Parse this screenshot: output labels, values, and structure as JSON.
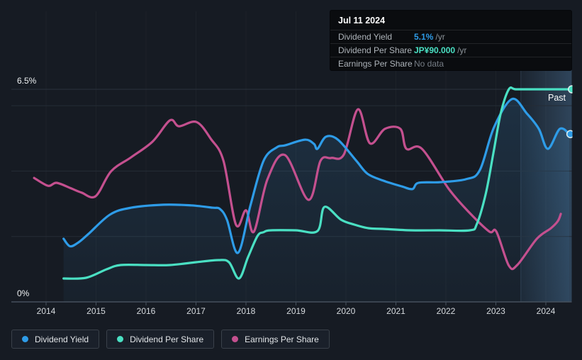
{
  "tooltip": {
    "date": "Jul 11 2024",
    "rows": [
      {
        "label": "Dividend Yield",
        "value": "5.1%",
        "suffix": "/yr",
        "value_color": "#2e9ce8",
        "muted": false
      },
      {
        "label": "Dividend Per Share",
        "value": "JP¥90.000",
        "suffix": "/yr",
        "value_color": "#4ae0c3",
        "muted": false
      },
      {
        "label": "Earnings Per Share",
        "value": "No data",
        "suffix": "",
        "value_color": "#757c84",
        "muted": true
      }
    ]
  },
  "past_label": "Past",
  "y_axis_labels": {
    "top": "6.5%",
    "bottom": "0%"
  },
  "x_axis_years": [
    "2014",
    "2015",
    "2016",
    "2017",
    "2018",
    "2019",
    "2020",
    "2021",
    "2022",
    "2023",
    "2024"
  ],
  "legend": [
    {
      "label": "Dividend Yield",
      "color": "#2e9ce8"
    },
    {
      "label": "Dividend Per Share",
      "color": "#4ae0c3"
    },
    {
      "label": "Earnings Per Share",
      "color": "#c4508f"
    }
  ],
  "colors": {
    "background": "#161b23",
    "gridline": "#252c36",
    "gridline_top": "#2a313c",
    "axis": "#45505c",
    "blue": "#2e9ce8",
    "teal": "#4ae0c3",
    "pink": "#c4508f",
    "area_fill": "rgba(64,150,215,",
    "past_band": "rgba(118,188,250,"
  },
  "chart_data": {
    "type": "line",
    "title": "Dividend history (past) — hover date Jul 11 2024",
    "x_axis": {
      "label": "year",
      "tick_years": [
        2014,
        2015,
        2016,
        2017,
        2018,
        2019,
        2020,
        2021,
        2022,
        2023,
        2024
      ],
      "range": [
        2013.7,
        2024.55
      ]
    },
    "y_axis": {
      "unit": "% (dividend yield scale)",
      "min": 0,
      "max": 6.5,
      "labeled_ticks": [
        "0%",
        "6.5%"
      ],
      "gridline_pcts": [
        2,
        4,
        6,
        6.5
      ],
      "grid": true
    },
    "past_band_start_year": 2023.5,
    "legend_position": "bottom-left",
    "series": [
      {
        "name": "Dividend Yield",
        "unit": "%",
        "color": "#2e9ce8",
        "area_fill": true,
        "end_marker": true,
        "to_pct": 1,
        "points": [
          [
            2014.35,
            1.93
          ],
          [
            2014.48,
            1.7
          ],
          [
            2014.65,
            1.82
          ],
          [
            2014.85,
            2.08
          ],
          [
            2015.28,
            2.67
          ],
          [
            2015.7,
            2.88
          ],
          [
            2016.35,
            2.97
          ],
          [
            2016.9,
            2.95
          ],
          [
            2017.33,
            2.88
          ],
          [
            2017.48,
            2.84
          ],
          [
            2017.62,
            2.51
          ],
          [
            2017.84,
            1.5
          ],
          [
            2018.09,
            2.95
          ],
          [
            2018.35,
            4.31
          ],
          [
            2018.61,
            4.72
          ],
          [
            2018.79,
            4.79
          ],
          [
            2019.18,
            4.96
          ],
          [
            2019.36,
            4.83
          ],
          [
            2019.43,
            4.68
          ],
          [
            2019.6,
            5.05
          ],
          [
            2019.84,
            4.96
          ],
          [
            2020.21,
            4.31
          ],
          [
            2020.43,
            3.92
          ],
          [
            2020.74,
            3.71
          ],
          [
            2021.12,
            3.53
          ],
          [
            2021.33,
            3.45
          ],
          [
            2021.45,
            3.64
          ],
          [
            2021.87,
            3.66
          ],
          [
            2022.4,
            3.75
          ],
          [
            2022.68,
            4.03
          ],
          [
            2022.96,
            5.33
          ],
          [
            2023.32,
            6.2
          ],
          [
            2023.62,
            5.76
          ],
          [
            2023.86,
            5.29
          ],
          [
            2024.04,
            4.68
          ],
          [
            2024.28,
            5.29
          ],
          [
            2024.47,
            5.13
          ]
        ]
      },
      {
        "name": "Dividend Per Share",
        "unit": "JP¥/yr",
        "color": "#4ae0c3",
        "area_fill": false,
        "end_marker": true,
        "to_pct": 0.072222,
        "points": [
          [
            2014.35,
            9.9
          ],
          [
            2014.8,
            10.2
          ],
          [
            2015.21,
            13.8
          ],
          [
            2015.49,
            15.6
          ],
          [
            2016.0,
            15.6
          ],
          [
            2016.48,
            15.6
          ],
          [
            2017.0,
            16.8
          ],
          [
            2017.45,
            17.7
          ],
          [
            2017.66,
            16.8
          ],
          [
            2017.86,
            9.9
          ],
          [
            2018.04,
            18.9
          ],
          [
            2018.23,
            27.9
          ],
          [
            2018.35,
            29.5
          ],
          [
            2018.5,
            30.3
          ],
          [
            2019.0,
            30.3
          ],
          [
            2019.43,
            30.0
          ],
          [
            2019.57,
            40.2
          ],
          [
            2019.9,
            34.8
          ],
          [
            2020.17,
            32.7
          ],
          [
            2020.45,
            31.2
          ],
          [
            2020.74,
            30.9
          ],
          [
            2021.3,
            30.3
          ],
          [
            2021.87,
            30.3
          ],
          [
            2022.48,
            30.3
          ],
          [
            2022.62,
            33.0
          ],
          [
            2022.8,
            46.0
          ],
          [
            2022.95,
            63.0
          ],
          [
            2023.1,
            80.0
          ],
          [
            2023.26,
            90.0
          ],
          [
            2023.4,
            90.0
          ],
          [
            2023.8,
            90.0
          ],
          [
            2024.5,
            90.0
          ]
        ]
      },
      {
        "name": "Earnings Per Share",
        "unit": "plotted on yield axis (currency scale not shown; no data at hover date)",
        "color": "#c4508f",
        "area_fill": false,
        "end_marker": false,
        "to_pct": 1,
        "points": [
          [
            2013.76,
            3.79
          ],
          [
            2014.04,
            3.55
          ],
          [
            2014.21,
            3.64
          ],
          [
            2014.5,
            3.47
          ],
          [
            2014.71,
            3.34
          ],
          [
            2014.99,
            3.23
          ],
          [
            2015.3,
            3.99
          ],
          [
            2015.7,
            4.42
          ],
          [
            2016.13,
            4.9
          ],
          [
            2016.48,
            5.55
          ],
          [
            2016.66,
            5.37
          ],
          [
            2017.01,
            5.5
          ],
          [
            2017.3,
            4.98
          ],
          [
            2017.55,
            4.31
          ],
          [
            2017.8,
            2.36
          ],
          [
            2018.0,
            2.8
          ],
          [
            2018.16,
            2.15
          ],
          [
            2018.43,
            3.75
          ],
          [
            2018.78,
            4.49
          ],
          [
            2019.25,
            3.12
          ],
          [
            2019.49,
            4.31
          ],
          [
            2019.7,
            4.4
          ],
          [
            2019.96,
            4.51
          ],
          [
            2020.24,
            5.89
          ],
          [
            2020.48,
            4.85
          ],
          [
            2020.78,
            5.29
          ],
          [
            2021.09,
            5.29
          ],
          [
            2021.21,
            4.68
          ],
          [
            2021.52,
            4.68
          ],
          [
            2022.06,
            3.45
          ],
          [
            2022.47,
            2.73
          ],
          [
            2022.87,
            2.15
          ],
          [
            2023.01,
            2.15
          ],
          [
            2023.26,
            1.11
          ],
          [
            2023.43,
            1.13
          ],
          [
            2023.82,
            1.93
          ],
          [
            2024.1,
            2.25
          ],
          [
            2024.24,
            2.47
          ],
          [
            2024.3,
            2.69
          ]
        ]
      }
    ]
  }
}
